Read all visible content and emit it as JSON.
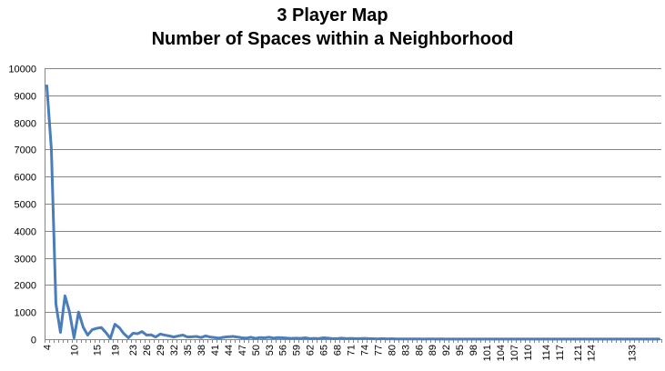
{
  "chart_data": {
    "type": "line",
    "title": "3 Player Map",
    "subtitle": "Number of Spaces within a Neighborhood",
    "xlabel": "",
    "ylabel": "",
    "ylim": [
      0,
      10000
    ],
    "yticks": [
      0,
      1000,
      2000,
      3000,
      4000,
      5000,
      6000,
      7000,
      8000,
      9000,
      10000
    ],
    "grid": true,
    "legend": "none",
    "x_tick_labels": [
      "4",
      "10",
      "15",
      "19",
      "23",
      "26",
      "29",
      "32",
      "35",
      "38",
      "41",
      "44",
      "47",
      "50",
      "53",
      "56",
      "59",
      "62",
      "65",
      "68",
      "71",
      "74",
      "77",
      "80",
      "83",
      "86",
      "89",
      "92",
      "95",
      "98",
      "101",
      "104",
      "107",
      "110",
      "114",
      "117",
      "121",
      "124",
      "133"
    ],
    "series": [
      {
        "color": "#4a7ebb",
        "points": [
          [
            4,
            9350
          ],
          [
            5,
            7000
          ],
          [
            6,
            1300
          ],
          [
            7,
            250
          ],
          [
            8,
            1600
          ],
          [
            9,
            1000
          ],
          [
            10,
            50
          ],
          [
            11,
            1000
          ],
          [
            12,
            450
          ],
          [
            13,
            150
          ],
          [
            14,
            350
          ],
          [
            15,
            400
          ],
          [
            16,
            430
          ],
          [
            17,
            250
          ],
          [
            18,
            30
          ],
          [
            19,
            550
          ],
          [
            20,
            420
          ],
          [
            21,
            200
          ],
          [
            22,
            50
          ],
          [
            23,
            220
          ],
          [
            24,
            200
          ],
          [
            25,
            280
          ],
          [
            26,
            150
          ],
          [
            27,
            160
          ],
          [
            28,
            80
          ],
          [
            29,
            190
          ],
          [
            30,
            150
          ],
          [
            31,
            120
          ],
          [
            32,
            80
          ],
          [
            33,
            120
          ],
          [
            34,
            150
          ],
          [
            35,
            80
          ],
          [
            36,
            90
          ],
          [
            37,
            100
          ],
          [
            38,
            60
          ],
          [
            39,
            120
          ],
          [
            40,
            80
          ],
          [
            41,
            60
          ],
          [
            42,
            40
          ],
          [
            43,
            70
          ],
          [
            44,
            90
          ],
          [
            45,
            100
          ],
          [
            46,
            80
          ],
          [
            47,
            50
          ],
          [
            48,
            40
          ],
          [
            49,
            70
          ],
          [
            50,
            30
          ],
          [
            51,
            60
          ],
          [
            52,
            50
          ],
          [
            53,
            70
          ],
          [
            54,
            40
          ],
          [
            55,
            60
          ],
          [
            56,
            50
          ],
          [
            57,
            40
          ],
          [
            58,
            30
          ],
          [
            59,
            40
          ],
          [
            60,
            30
          ],
          [
            61,
            50
          ],
          [
            62,
            20
          ],
          [
            63,
            30
          ],
          [
            64,
            20
          ],
          [
            65,
            50
          ],
          [
            66,
            40
          ],
          [
            67,
            20
          ],
          [
            68,
            20
          ],
          [
            69,
            40
          ],
          [
            70,
            20
          ],
          [
            71,
            30
          ],
          [
            72,
            20
          ],
          [
            73,
            20
          ],
          [
            74,
            30
          ],
          [
            75,
            20
          ],
          [
            76,
            15
          ],
          [
            77,
            10
          ],
          [
            78,
            20
          ],
          [
            79,
            10
          ],
          [
            80,
            15
          ],
          [
            81,
            10
          ],
          [
            82,
            10
          ],
          [
            83,
            10
          ],
          [
            84,
            10
          ],
          [
            85,
            10
          ],
          [
            86,
            10
          ],
          [
            87,
            5
          ],
          [
            88,
            10
          ],
          [
            89,
            10
          ],
          [
            90,
            5
          ],
          [
            91,
            10
          ],
          [
            92,
            5
          ],
          [
            93,
            5
          ],
          [
            94,
            5
          ],
          [
            95,
            5
          ],
          [
            96,
            5
          ],
          [
            97,
            5
          ],
          [
            98,
            5
          ],
          [
            99,
            5
          ],
          [
            100,
            5
          ],
          [
            101,
            5
          ],
          [
            102,
            5
          ],
          [
            103,
            5
          ],
          [
            104,
            5
          ],
          [
            105,
            5
          ],
          [
            106,
            5
          ],
          [
            107,
            5
          ],
          [
            108,
            5
          ],
          [
            109,
            5
          ],
          [
            110,
            5
          ],
          [
            111,
            5
          ],
          [
            112,
            5
          ],
          [
            113,
            5
          ],
          [
            114,
            5
          ],
          [
            115,
            5
          ],
          [
            116,
            5
          ],
          [
            117,
            5
          ],
          [
            118,
            5
          ],
          [
            119,
            5
          ],
          [
            120,
            5
          ],
          [
            121,
            5
          ],
          [
            122,
            5
          ],
          [
            123,
            5
          ],
          [
            124,
            5
          ],
          [
            125,
            5
          ],
          [
            126,
            5
          ],
          [
            127,
            5
          ],
          [
            128,
            5
          ],
          [
            129,
            5
          ],
          [
            130,
            5
          ],
          [
            131,
            5
          ],
          [
            132,
            5
          ],
          [
            133,
            5
          ],
          [
            134,
            5
          ],
          [
            135,
            5
          ],
          [
            136,
            5
          ],
          [
            137,
            5
          ],
          [
            138,
            5
          ],
          [
            139,
            5
          ]
        ]
      }
    ]
  }
}
